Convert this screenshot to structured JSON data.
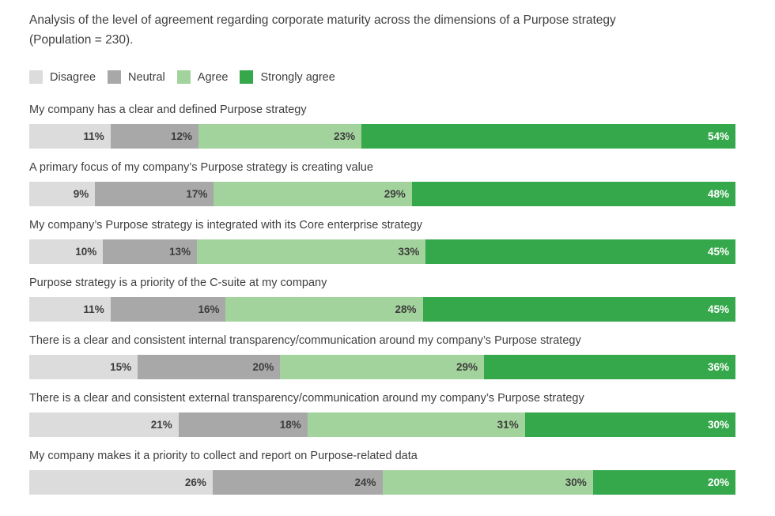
{
  "title_lines": [
    "Analysis of the level of agreement regarding corporate maturity across the dimensions of a Purpose strategy",
    "(Population = 230)."
  ],
  "legend": {
    "items": [
      {
        "label": "Disagree",
        "color": "#dcdcdc"
      },
      {
        "label": "Neutral",
        "color": "#a8a8a8"
      },
      {
        "label": "Agree",
        "color": "#a3d39c"
      },
      {
        "label": "Strongly agree",
        "color": "#36a84c"
      }
    ]
  },
  "chart_data": {
    "type": "bar",
    "orientation": "horizontal",
    "stacked": true,
    "normalized_to_100": true,
    "title": "Analysis of the level of agreement regarding corporate maturity across the dimensions of a Purpose strategy (Population = 230).",
    "population": 230,
    "value_suffix": "%",
    "legend_position": "top",
    "grid": false,
    "categories": [
      "My company has a clear and defined Purpose strategy",
      "A primary focus of my company’s Purpose strategy is creating value",
      "My company’s Purpose strategy is integrated with its Core enterprise strategy",
      "Purpose strategy is a priority of the C-suite at my company",
      "There is a clear and consistent internal transparency/communication around my company’s Purpose strategy",
      "There is a clear and consistent external transparency/communication around my company’s Purpose strategy",
      "My company makes it a priority to collect and report on Purpose-related data"
    ],
    "series": [
      {
        "name": "Disagree",
        "slug": "disagree",
        "color": "#dcdcdc",
        "label_color": "#3d3d3d",
        "values": [
          11,
          9,
          10,
          11,
          15,
          21,
          26
        ],
        "labels": [
          "11%",
          "9%",
          "10%",
          "11%",
          "15%",
          "21%",
          "26%"
        ]
      },
      {
        "name": "Neutral",
        "slug": "neutral",
        "color": "#a8a8a8",
        "label_color": "#3d3d3d",
        "values": [
          12,
          17,
          13,
          16,
          20,
          18,
          24
        ],
        "labels": [
          "12%",
          "17%",
          "13%",
          "16%",
          "20%",
          "18%",
          "24%"
        ]
      },
      {
        "name": "Agree",
        "slug": "agree",
        "color": "#a3d39c",
        "label_color": "#3d3d3d",
        "values": [
          23,
          29,
          33,
          28,
          29,
          31,
          30
        ],
        "labels": [
          "23%",
          "29%",
          "33%",
          "28%",
          "29%",
          "31%",
          "30%"
        ]
      },
      {
        "name": "Strongly agree",
        "slug": "strongly-agree",
        "color": "#36a84c",
        "label_color": "#ffffff",
        "values": [
          54,
          48,
          45,
          45,
          36,
          30,
          20
        ],
        "labels": [
          "54%",
          "48%",
          "45%",
          "45%",
          "36%",
          "30%",
          "20%"
        ]
      }
    ]
  }
}
